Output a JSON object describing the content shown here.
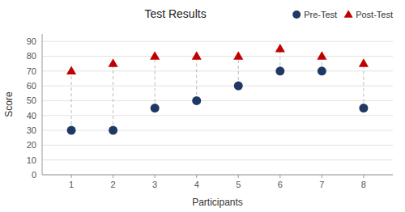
{
  "chart_data": {
    "type": "scatter",
    "title": "Test Results",
    "x_label": "Participants",
    "y_label": "Score",
    "x": [
      1,
      2,
      3,
      4,
      5,
      6,
      7,
      8
    ],
    "series": [
      {
        "name": "Pre-Test",
        "color": "#1F3864",
        "marker": "circle",
        "values": [
          30,
          30,
          45,
          50,
          60,
          70,
          70,
          45
        ]
      },
      {
        "name": "Post-Test",
        "color": "#C00000",
        "marker": "triangle",
        "values": [
          70,
          75,
          80,
          80,
          80,
          85,
          80,
          75
        ]
      }
    ],
    "xlim": [
      0.3,
      8.7
    ],
    "xticks": [
      1,
      2,
      3,
      4,
      5,
      6,
      7,
      8
    ],
    "ylim": [
      0,
      95
    ],
    "yticks": [
      0,
      10,
      20,
      30,
      40,
      50,
      60,
      70,
      80,
      90
    ],
    "grid": true,
    "legend": "upper right"
  }
}
